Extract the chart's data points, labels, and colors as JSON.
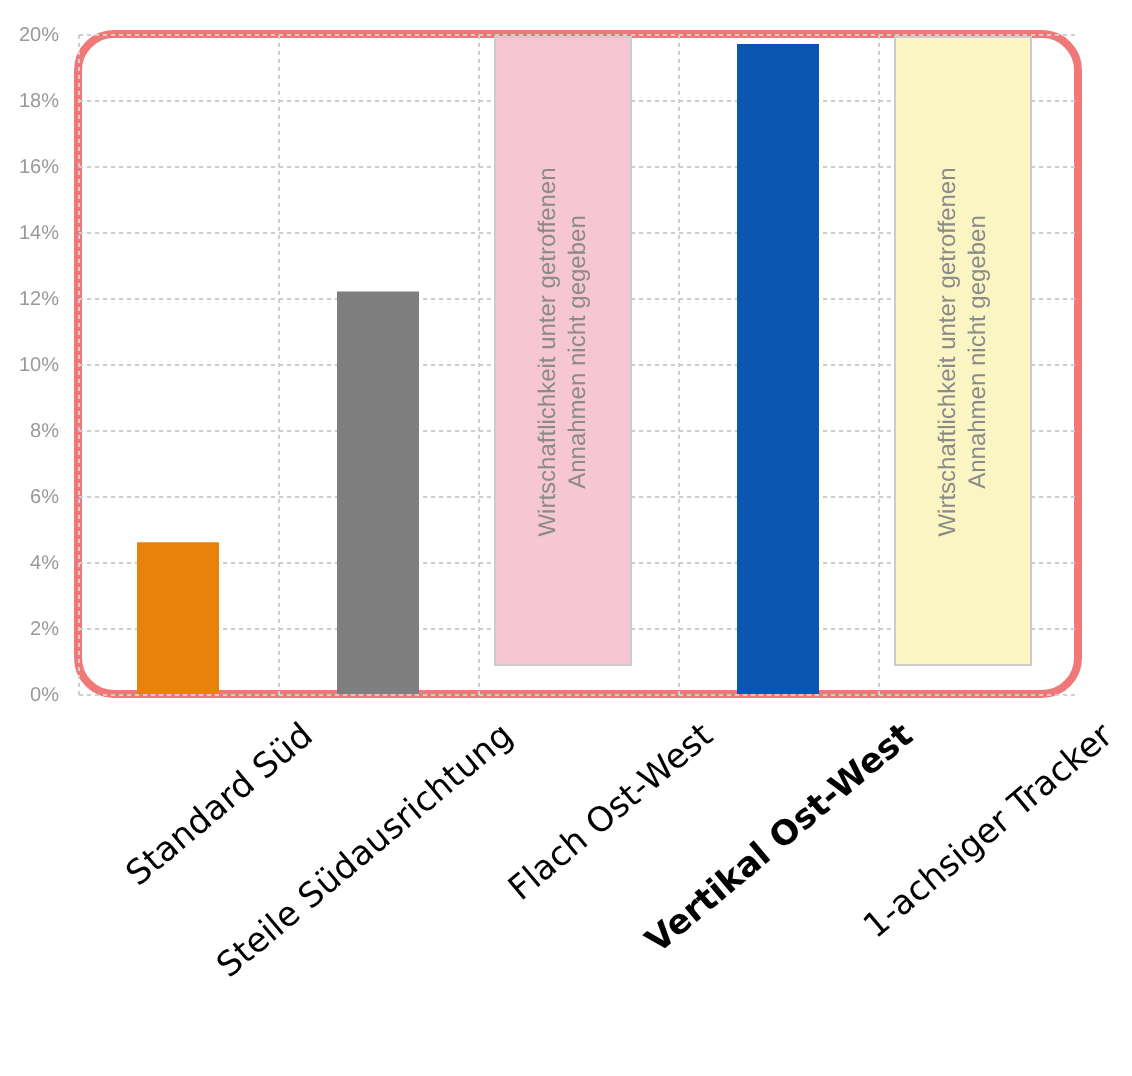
{
  "chart_data": {
    "type": "bar",
    "categories": [
      "Standard Süd",
      "Steile Südausrichtung",
      "Flach Ost-West",
      "Vertikal Ost-West",
      "1-achsiger Tracker"
    ],
    "values": [
      4.6,
      12.2,
      null,
      19.7,
      null
    ],
    "colors": [
      "#e8820a",
      "#7f7f7f",
      "#7f7f7f",
      "#0a56b0",
      "#7f7f7f"
    ],
    "ylim": [
      0,
      20
    ],
    "yticks": [
      {
        "value": 0,
        "label": "0%"
      },
      {
        "value": 2,
        "label": "2%"
      },
      {
        "value": 4,
        "label": "4%"
      },
      {
        "value": 6,
        "label": "6%"
      },
      {
        "value": 8,
        "label": "8%"
      },
      {
        "value": 10,
        "label": "10%"
      },
      {
        "value": 12,
        "label": "12%"
      },
      {
        "value": 14,
        "label": "14%"
      },
      {
        "value": 16,
        "label": "16%"
      },
      {
        "value": 18,
        "label": "18%"
      },
      {
        "value": 20,
        "label": "20%"
      }
    ],
    "annotations": [
      "Wirtschaftlichkeit unter getroffenen\nAnnahmen nicht gegeben",
      "Wirtschaftlichkeit unter getroffenen\nAnnahmen nicht gegeben"
    ],
    "grid": true
  }
}
